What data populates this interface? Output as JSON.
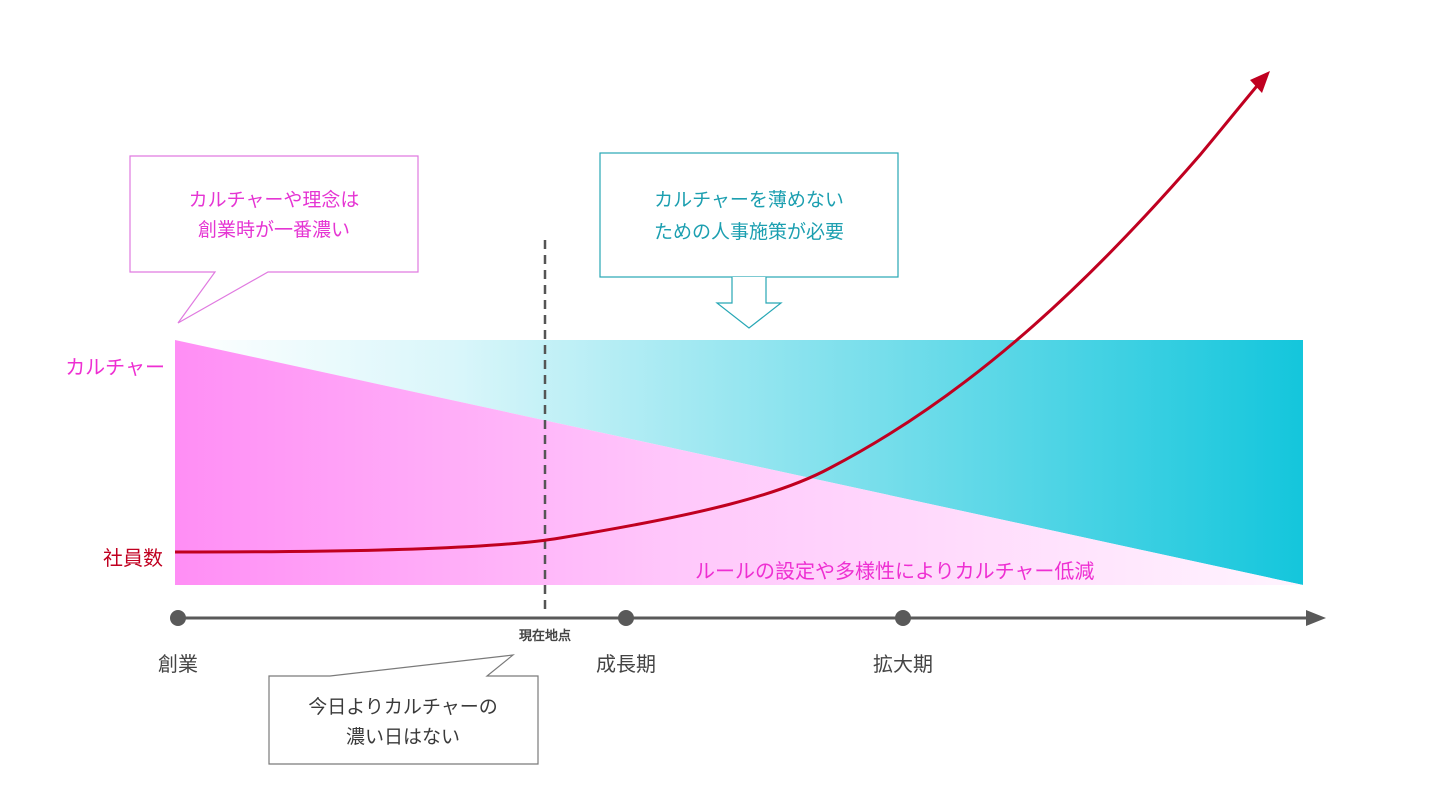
{
  "colors": {
    "culture": "#f24fd9",
    "culture_light": "#ffe4fb",
    "teal": "#1ec8dc",
    "teal_light": "#e8fbfd",
    "employees": "#c00020",
    "axis": "#595959",
    "dashed": "#595959",
    "gray_box": "#8c8c8c",
    "text_dark": "#3a3a3a"
  },
  "labels": {
    "culture": "カルチャー",
    "employees": "社員数",
    "reduction": "ルールの設定や多様性によりカルチャー低減"
  },
  "callouts": {
    "left": {
      "line1": "カルチャーや理念は",
      "line2": "創業時が一番濃い"
    },
    "right": {
      "line1": "カルチャーを薄めない",
      "line2": "ための人事施策が必要"
    },
    "bottom": {
      "line1": "今日よりカルチャーの",
      "line2": "濃い日はない"
    }
  },
  "timeline": {
    "stages": [
      "創業",
      "成長期",
      "拡大期"
    ],
    "current": "現在地点"
  }
}
